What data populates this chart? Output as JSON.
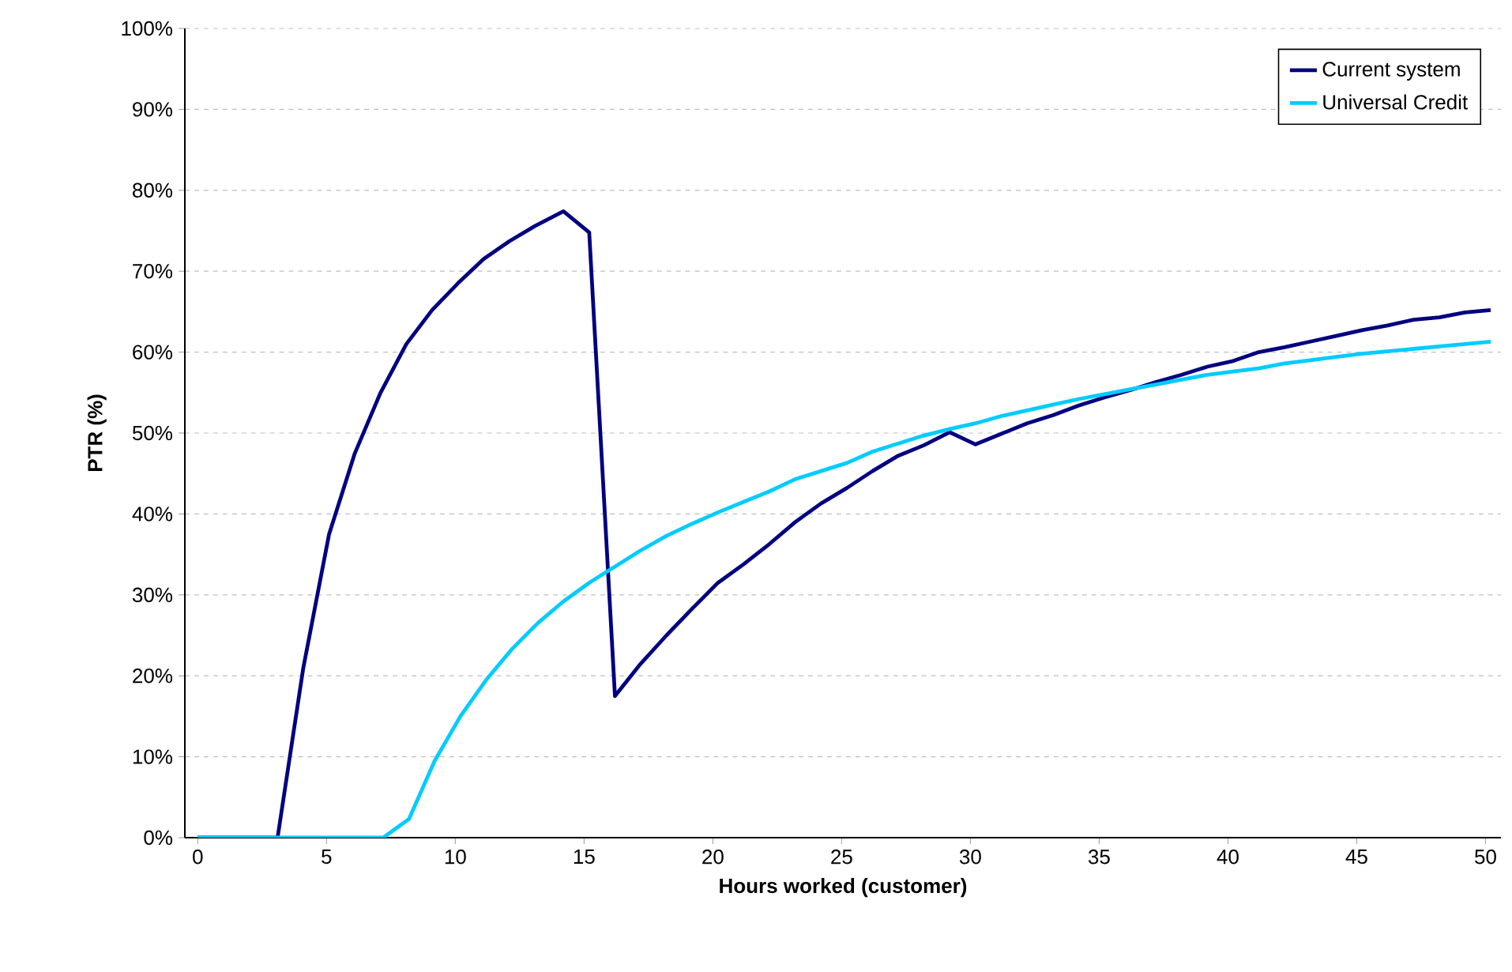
{
  "chart_data": {
    "type": "line",
    "xlabel": "Hours worked (customer)",
    "ylabel": "PTR (%)",
    "xlim": [
      -0.5,
      50.6
    ],
    "xticks": [
      0,
      5,
      10,
      15,
      20,
      25,
      30,
      35,
      40,
      45,
      50
    ],
    "ylim": [
      0,
      100
    ],
    "yticks": [
      {
        "value": 0,
        "label": "0%"
      },
      {
        "value": 10,
        "label": "10%"
      },
      {
        "value": 20,
        "label": "20%"
      },
      {
        "value": 30,
        "label": "30%"
      },
      {
        "value": 40,
        "label": "40%"
      },
      {
        "value": 50,
        "label": "50%"
      },
      {
        "value": 60,
        "label": "60%"
      },
      {
        "value": 70,
        "label": "70%"
      },
      {
        "value": 80,
        "label": "80%"
      },
      {
        "value": 90,
        "label": "90%"
      },
      {
        "value": 100,
        "label": "100%"
      }
    ],
    "grid": "y",
    "legend": "top right",
    "marker": "none",
    "line_style": "solid",
    "series": [
      {
        "name": "Current system",
        "color": "#000080",
        "x": [
          0,
          3.1,
          4.1,
          5.1,
          6.1,
          7.1,
          8.1,
          9.1,
          10.1,
          11.1,
          12.1,
          13.1,
          14.2,
          15.2,
          16.2,
          17.2,
          18.2,
          19.2,
          20.2,
          21.2,
          22.2,
          23.2,
          24.2,
          25.2,
          26.2,
          27.2,
          28.2,
          29.2,
          30.2,
          31.2,
          32.2,
          33.2,
          34.2,
          35.2,
          36.2,
          37.2,
          38.2,
          39.2,
          40.2,
          41.2,
          42.2,
          43.2,
          44.2,
          45.2,
          46.2,
          47.2,
          48.2,
          49.2,
          50.2
        ],
        "values": [
          0,
          0,
          21,
          37.5,
          47.5,
          55,
          61,
          65.2,
          68.5,
          71.5,
          73.7,
          75.6,
          77.4,
          74.8,
          17.5,
          21.5,
          25,
          28.3,
          31.5,
          33.8,
          36.3,
          39,
          41.3,
          43.2,
          45.3,
          47.2,
          48.5,
          50.1,
          48.6,
          49.9,
          51.2,
          52.2,
          53.4,
          54.4,
          55.3,
          56.3,
          57.2,
          58.2,
          58.9,
          60,
          60.6,
          61.3,
          62,
          62.7,
          63.3,
          64,
          64.3,
          64.9,
          65.2
        ]
      },
      {
        "name": "Universal Credit",
        "color": "#00ccff",
        "x": [
          0,
          7.2,
          8.2,
          9.2,
          10.2,
          11.2,
          12.2,
          13.2,
          14.2,
          15.2,
          16.2,
          17.2,
          18.2,
          19.2,
          20.2,
          21.2,
          22.2,
          23.2,
          24.2,
          25.2,
          26.2,
          27.2,
          28.2,
          29.2,
          30.2,
          31.2,
          32.2,
          33.2,
          34.2,
          35.2,
          36.2,
          37.2,
          38.2,
          39.2,
          40.2,
          41.2,
          42.2,
          43.2,
          44.2,
          45.2,
          46.2,
          47.2,
          48.2,
          49.2,
          50.2
        ],
        "values": [
          0,
          0,
          2.3,
          9.5,
          15,
          19.5,
          23.3,
          26.5,
          29.2,
          31.5,
          33.5,
          35.5,
          37.3,
          38.8,
          40.2,
          41.5,
          42.8,
          44.3,
          45.3,
          46.3,
          47.7,
          48.7,
          49.7,
          50.5,
          51.2,
          52.1,
          52.8,
          53.5,
          54.2,
          54.8,
          55.4,
          56,
          56.6,
          57.2,
          57.6,
          58,
          58.6,
          59,
          59.4,
          59.8,
          60.1,
          60.4,
          60.7,
          61,
          61.3
        ]
      }
    ]
  }
}
